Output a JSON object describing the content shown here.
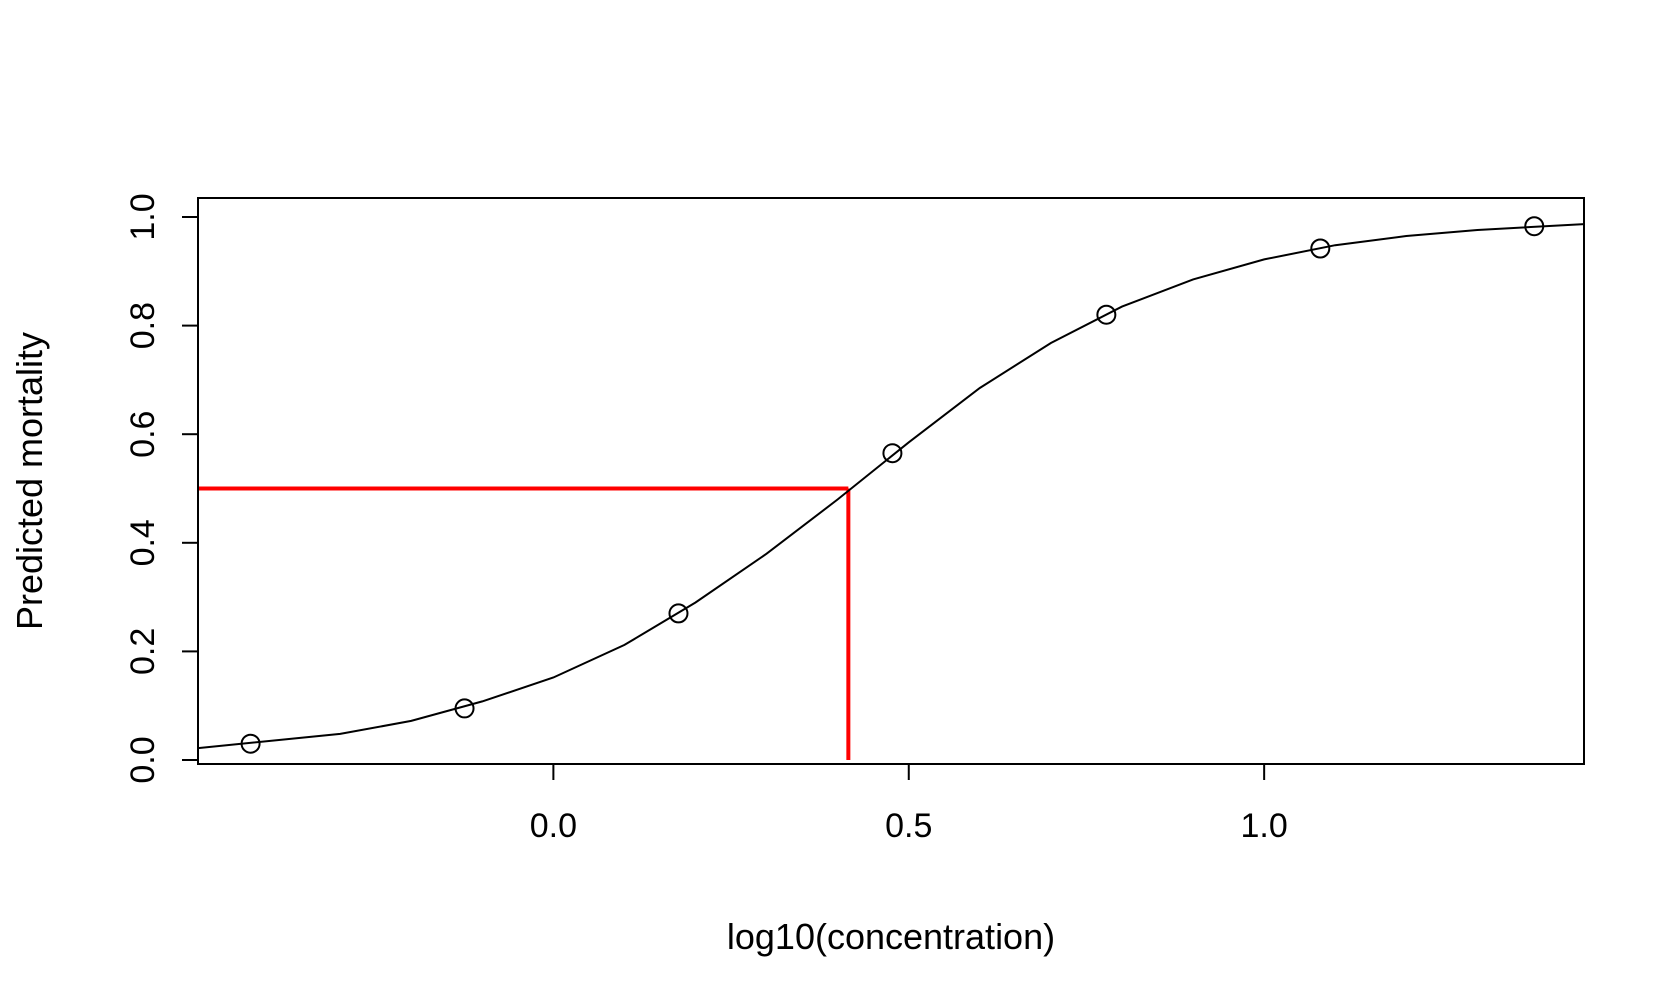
{
  "chart_data": {
    "type": "scatter",
    "xlabel": "log10(concentration)",
    "ylabel": "Predicted mortality",
    "xlim": [
      -0.5,
      1.45
    ],
    "ylim": [
      0.0,
      1.0
    ],
    "x_ticks": [
      0.0,
      0.5,
      1.0
    ],
    "x_tick_labels": [
      "0.0",
      "0.5",
      "1.0"
    ],
    "y_ticks": [
      0.0,
      0.2,
      0.4,
      0.6,
      0.8,
      1.0
    ],
    "y_tick_labels": [
      "0.0",
      "0.2",
      "0.4",
      "0.6",
      "0.8",
      "1.0"
    ],
    "grid": false,
    "points": {
      "x": [
        -0.426,
        -0.125,
        0.176,
        0.477,
        0.778,
        1.079,
        1.38
      ],
      "y": [
        0.03,
        0.095,
        0.27,
        0.565,
        0.82,
        0.942,
        0.983
      ]
    },
    "fitted_curve": {
      "x": [
        -0.5,
        -0.3,
        -0.2,
        -0.1,
        0.0,
        0.1,
        0.2,
        0.3,
        0.4,
        0.5,
        0.6,
        0.7,
        0.8,
        0.9,
        1.0,
        1.1,
        1.2,
        1.3,
        1.45
      ],
      "y": [
        0.022,
        0.048,
        0.072,
        0.108,
        0.152,
        0.212,
        0.29,
        0.38,
        0.48,
        0.585,
        0.685,
        0.768,
        0.835,
        0.885,
        0.922,
        0.948,
        0.965,
        0.976,
        0.987
      ]
    },
    "reference_lines": {
      "color": "#ff0000",
      "x": 0.415,
      "y": 0.5
    },
    "colors": {
      "curve": "#000000",
      "points": "#000000",
      "reference": "#ff0000"
    }
  }
}
